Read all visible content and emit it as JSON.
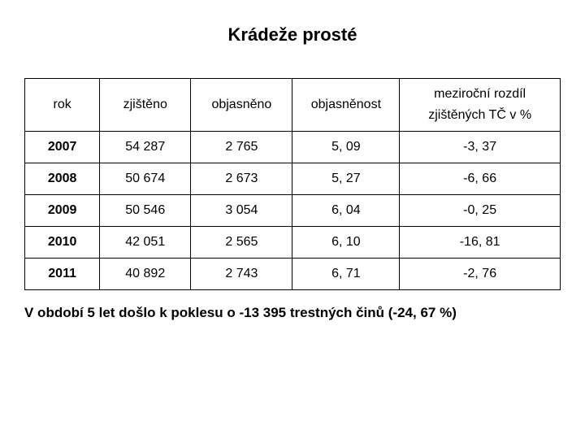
{
  "title": "Krádeže prosté",
  "table": {
    "headers": {
      "col1": "rok",
      "col2": "zjištěno",
      "col3": "objasněno",
      "col4": "objasněnost",
      "col5_top": "meziroční rozdíl",
      "col5_bot": "zjištěných TČ v %"
    },
    "rows": [
      {
        "year": "2007",
        "detected": "54 287",
        "solved": "2 765",
        "rate": "5, 09",
        "delta": "-3, 37"
      },
      {
        "year": "2008",
        "detected": "50 674",
        "solved": "2 673",
        "rate": "5, 27",
        "delta": "-6, 66"
      },
      {
        "year": "2009",
        "detected": "50 546",
        "solved": "3 054",
        "rate": "6, 04",
        "delta": "-0, 25"
      },
      {
        "year": "2010",
        "detected": "42 051",
        "solved": "2 565",
        "rate": "6, 10",
        "delta": "-16, 81"
      },
      {
        "year": "2011",
        "detected": "40 892",
        "solved": "2 743",
        "rate": "6, 71",
        "delta": "-2, 76"
      }
    ]
  },
  "footer": "V období 5 let došlo k poklesu o -13 395 trestných činů (-24, 67 %)",
  "style": {
    "background_color": "#ffffff",
    "text_color": "#000000",
    "border_color": "#000000",
    "title_fontsize": 22,
    "cell_fontsize": 16,
    "footer_fontsize": 17,
    "column_widths_pct": [
      14,
      17,
      19,
      20,
      30
    ]
  }
}
